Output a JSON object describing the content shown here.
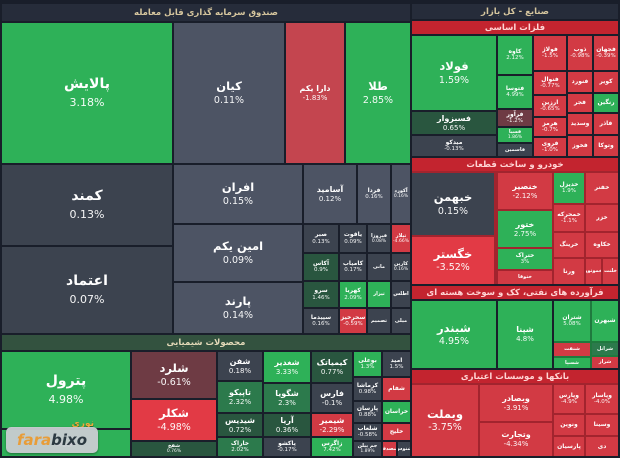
{
  "page": {
    "app": "farabixo market map",
    "left_panel_title": "صندوق سرمایه گذاری قابل معامله",
    "right_panel_title": "صنایع - کل بازار"
  },
  "watermark": {
    "brand_fara": "fara",
    "brand_bixo": "bixo",
    "overlay_label": "نوری"
  },
  "colors": {
    "background": "#191e2a",
    "header_bg": "#262c3a",
    "header_fg": "#d6c69e",
    "red_bar_bg": "#c3242f",
    "red_bar_fg": "#ffd4d4",
    "green_bar_bg": "#33523f",
    "green_bar_fg": "#e3d9b8",
    "tones": {
      "g": "#2eb158",
      "gk": "#2c7a4c",
      "gd": "#29563f",
      "gy": "#4d5464",
      "dk": "#3c434f",
      "r": "#d23a44",
      "rb": "#e23a45",
      "cr": "#c4454f",
      "mr": "#6e3b44"
    }
  },
  "chart_data": {
    "type": "heatmap",
    "subtype": "stock-market-treemap",
    "value_unit": "percent change",
    "sections": [
      {
        "id": "etf-funds",
        "label": "صندوق سرمایه گذاری قابل معامله",
        "bar": [
          2,
          4,
          408,
          17
        ],
        "bar_style": "header",
        "tiles": [
          [
            "پالایش",
            "3.18%",
            "g",
            2,
            23,
            170,
            140
          ],
          [
            "کیان",
            "0.11%",
            "gy",
            174,
            23,
            110,
            140
          ],
          [
            "دارا یکم",
            "-1.83%",
            "cr",
            286,
            23,
            58,
            140
          ],
          [
            "طلا",
            "2.85%",
            "g",
            346,
            23,
            64,
            140
          ],
          [
            "کمند",
            "0.13%",
            "dk",
            2,
            165,
            170,
            80
          ],
          [
            "اعتماد",
            "0.07%",
            "dk",
            2,
            247,
            170,
            86
          ],
          [
            "افران",
            "0.15%",
            "gy",
            174,
            165,
            128,
            58
          ],
          [
            "آسامید",
            "0.12%",
            "gy",
            304,
            165,
            52,
            58
          ],
          [
            "فردا",
            "0.16%",
            "gy",
            358,
            165,
            32,
            58
          ],
          [
            "آکورد",
            "0.16%",
            "gy",
            392,
            165,
            18,
            58
          ],
          [
            "امین یکم",
            "0.09%",
            "gy",
            174,
            225,
            128,
            56
          ],
          [
            "پارند",
            "0.14%",
            "gy",
            174,
            283,
            128,
            50
          ],
          [
            "صبر",
            "0.13%",
            "dk",
            304,
            225,
            34,
            27
          ],
          [
            "یاقوت",
            "0.09%",
            "dk",
            340,
            225,
            26,
            27
          ],
          [
            "فیروزا",
            "0.08%",
            "dk",
            368,
            225,
            22,
            27
          ],
          [
            "تیلار",
            "-4.66%",
            "r",
            392,
            225,
            18,
            27
          ],
          [
            "آکاس",
            "0.9%",
            "gd",
            304,
            254,
            34,
            26
          ],
          [
            "کامیاب",
            "0.17%",
            "dk",
            340,
            254,
            26,
            26
          ],
          [
            "مانی",
            "",
            "dk",
            368,
            254,
            22,
            26
          ],
          [
            "کارین",
            "0.16%",
            "dk",
            392,
            254,
            18,
            26
          ],
          [
            "سرو",
            "1.46%",
            "gd",
            304,
            282,
            34,
            25
          ],
          [
            "کهربا",
            "2.09%",
            "g",
            340,
            282,
            26,
            25
          ],
          [
            "تیزار",
            "",
            "g",
            368,
            282,
            22,
            25
          ],
          [
            "اطلس",
            "",
            "dk",
            392,
            282,
            18,
            25
          ],
          [
            "سپیدما",
            "0.16%",
            "dk",
            304,
            309,
            34,
            24
          ],
          [
            "سحرخیز",
            "-0.59%",
            "r",
            340,
            309,
            26,
            24
          ],
          [
            "تصمیم",
            "",
            "dk",
            368,
            309,
            22,
            24
          ],
          [
            "میلی",
            "",
            "dk",
            392,
            309,
            18,
            24
          ]
        ]
      },
      {
        "id": "chemicals",
        "label": "محصولات شیمیایی",
        "bar": [
          2,
          335,
          408,
          15
        ],
        "bar_style": "green",
        "tiles": [
          [
            "پترول",
            "4.98%",
            "g",
            2,
            352,
            128,
            76
          ],
          [
            "نوری",
            "",
            "g",
            2,
            430,
            128,
            26
          ],
          [
            "شلرد",
            "-0.61%",
            "mr",
            132,
            352,
            84,
            46
          ],
          [
            "شکلر",
            "-4.98%",
            "rb",
            132,
            400,
            84,
            40
          ],
          [
            "شفخ",
            "0.76%",
            "gd",
            132,
            442,
            84,
            14
          ],
          [
            "شفن",
            "0.18%",
            "dk",
            218,
            352,
            44,
            28
          ],
          [
            "تاپیکو",
            "2.32%",
            "gk",
            218,
            382,
            44,
            30
          ],
          [
            "شیدیس",
            "0.72%",
            "gd",
            218,
            414,
            44,
            22
          ],
          [
            "خاراک",
            "2.02%",
            "gk",
            218,
            438,
            44,
            18
          ],
          [
            "شغدیر",
            "3.33%",
            "g",
            264,
            352,
            46,
            30
          ],
          [
            "شگویا",
            "2.3%",
            "gk",
            264,
            384,
            46,
            28
          ],
          [
            "آریا",
            "0.36%",
            "gd",
            264,
            414,
            46,
            22
          ],
          [
            "پاکشو",
            "-0.17%",
            "dk",
            264,
            438,
            46,
            18
          ],
          [
            "کیمیاتک",
            "0.77%",
            "gd",
            312,
            352,
            40,
            30
          ],
          [
            "فارس",
            "-0.1%",
            "dk",
            312,
            384,
            40,
            28
          ],
          [
            "شیمیر",
            "-2.29%",
            "r",
            312,
            414,
            40,
            22
          ],
          [
            "زاگرس",
            "7.42%",
            "g",
            312,
            438,
            40,
            18
          ],
          [
            "بوعلی",
            "1.3%",
            "g",
            354,
            352,
            27,
            24
          ],
          [
            "امید",
            "1.5%",
            "dk",
            383,
            352,
            27,
            24
          ],
          [
            "کرماشا",
            "0.98%",
            "dk",
            354,
            378,
            27,
            22
          ],
          [
            "شفام",
            "",
            "r",
            383,
            378,
            27,
            22
          ],
          [
            "پارسان",
            "0.88%",
            "dk",
            354,
            402,
            27,
            20
          ],
          [
            "خراسان",
            "",
            "g",
            383,
            402,
            27,
            20
          ],
          [
            "شلعاب",
            "-0.58%",
            "dk",
            354,
            424,
            27,
            16
          ],
          [
            "خلیج",
            "",
            "r",
            383,
            424,
            27,
            16
          ],
          [
            "جم پیلن",
            "1.89%",
            "dk",
            354,
            442,
            27,
            14
          ],
          [
            "شصدف",
            "",
            "r",
            383,
            442,
            13,
            14
          ],
          [
            "شنوس",
            "",
            "dk",
            398,
            442,
            12,
            14
          ]
        ]
      },
      {
        "id": "industries-header",
        "label": "صنایع - کل بازار",
        "bar": [
          412,
          4,
          206,
          15
        ],
        "bar_style": "header",
        "tiles": []
      },
      {
        "id": "basic-metals",
        "label": "فلزات اساسی",
        "bar": [
          412,
          21,
          206,
          13
        ],
        "bar_style": "red",
        "tiles": [
          [
            "فولاد",
            "1.59%",
            "g",
            412,
            36,
            84,
            74
          ],
          [
            "فسبزوار",
            "0.65%",
            "gd",
            412,
            112,
            84,
            22
          ],
          [
            "میدکو",
            "-0.13%",
            "dk",
            412,
            136,
            84,
            20
          ],
          [
            "کاوه",
            "2.12%",
            "g",
            498,
            36,
            34,
            38
          ],
          [
            "فتوسا",
            "4.99%",
            "g",
            498,
            76,
            34,
            32
          ],
          [
            "فرآور",
            "-1.2%",
            "mr",
            498,
            110,
            34,
            16
          ],
          [
            "فسپا",
            "1.86%",
            "g",
            498,
            128,
            34,
            14
          ],
          [
            "فاسمین",
            "",
            "dk",
            498,
            144,
            34,
            12
          ],
          [
            "فولاژ",
            "-1.5%",
            "r",
            534,
            36,
            32,
            34
          ],
          [
            "ذوب",
            "-0.98%",
            "r",
            568,
            36,
            24,
            34
          ],
          [
            "فجهان",
            "-0.39%",
            "r",
            594,
            36,
            24,
            34
          ],
          [
            "فنوال",
            "-0.77%",
            "r",
            534,
            72,
            32,
            22
          ],
          [
            "ارزین",
            "-0.65%",
            "r",
            534,
            96,
            32,
            20
          ],
          [
            "هرمز",
            "-0.7%",
            "r",
            534,
            118,
            32,
            18
          ],
          [
            "فروی",
            "-1.0%",
            "r",
            534,
            138,
            32,
            18
          ],
          [
            "فنورد",
            "",
            "r",
            568,
            72,
            24,
            20
          ],
          [
            "کویر",
            "",
            "r",
            594,
            72,
            24,
            20
          ],
          [
            "فجر",
            "",
            "r",
            568,
            94,
            24,
            18
          ],
          [
            "رنگین",
            "",
            "g",
            594,
            94,
            24,
            18
          ],
          [
            "وسدید",
            "",
            "r",
            568,
            114,
            24,
            20
          ],
          [
            "فاذر",
            "",
            "r",
            594,
            114,
            24,
            20
          ],
          [
            "فخوز",
            "",
            "r",
            568,
            136,
            24,
            20
          ],
          [
            "وتوکا",
            "",
            "r",
            594,
            136,
            24,
            20
          ]
        ]
      },
      {
        "id": "auto-parts",
        "label": "خودرو و ساخت قطعات",
        "bar": [
          412,
          158,
          206,
          13
        ],
        "bar_style": "red",
        "fills": [
          [
            412,
            171,
            206,
            113,
            "#a2242e"
          ]
        ],
        "tiles": [
          [
            "خبهمن",
            "0.15%",
            "dk",
            412,
            173,
            82,
            62
          ],
          [
            "خگستر",
            "-3.52%",
            "rb",
            412,
            237,
            82,
            47
          ],
          [
            "خنصیر",
            "-2.12%",
            "r",
            498,
            173,
            54,
            36
          ],
          [
            "ختور",
            "2.75%",
            "g",
            498,
            211,
            54,
            36
          ],
          [
            "ختراک",
            "3%",
            "g",
            498,
            249,
            54,
            20
          ],
          [
            "ختوقا",
            "-4.99%",
            "r",
            498,
            271,
            54,
            13
          ],
          [
            "خدیزل",
            "1.9%",
            "g",
            554,
            173,
            30,
            30
          ],
          [
            "خفنر",
            "",
            "r",
            586,
            173,
            32,
            30
          ],
          [
            "خمحرکه",
            "-1.1%",
            "r",
            554,
            205,
            30,
            26
          ],
          [
            "خزر",
            "",
            "r",
            586,
            205,
            32,
            26
          ],
          [
            "خرینگ",
            "",
            "r",
            554,
            233,
            30,
            24
          ],
          [
            "خکاوه",
            "",
            "r",
            586,
            233,
            32,
            24
          ],
          [
            "ورنا",
            "",
            "r",
            554,
            259,
            30,
            25
          ],
          [
            "خموتور",
            "",
            "r",
            586,
            259,
            15,
            25
          ],
          [
            "خلنت",
            "",
            "r",
            603,
            259,
            15,
            25
          ]
        ]
      },
      {
        "id": "oil-products",
        "label": "فرآورده های نفتی، کک و سوخت هسته ای",
        "bar": [
          412,
          286,
          206,
          13
        ],
        "bar_style": "red",
        "fills": [
          [
            554,
            301,
            64,
            67,
            "#1f7a3e"
          ]
        ],
        "tiles": [
          [
            "شبندر",
            "4.95%",
            "g",
            412,
            301,
            84,
            67
          ],
          [
            "شپنا",
            "4.8%",
            "g",
            498,
            301,
            54,
            67
          ],
          [
            "شتران",
            "5.08%",
            "g",
            554,
            301,
            36,
            40
          ],
          [
            "شبهرن",
            "",
            "g",
            592,
            301,
            26,
            40
          ],
          [
            "شنفت",
            "",
            "r",
            554,
            343,
            36,
            13
          ],
          [
            "شسپا",
            "",
            "g",
            554,
            358,
            36,
            10
          ],
          [
            "شرانل",
            "",
            "gk",
            592,
            343,
            26,
            12
          ],
          [
            "شراز",
            "",
            "r",
            592,
            357,
            26,
            11
          ]
        ]
      },
      {
        "id": "banks",
        "label": "بانکها و موسسات اعتباری",
        "bar": [
          412,
          370,
          206,
          13
        ],
        "bar_style": "red",
        "fills": [
          [
            412,
            383,
            206,
            73,
            "#a2242e"
          ]
        ],
        "tiles": [
          [
            "وبملت",
            "-3.75%",
            "r",
            412,
            385,
            66,
            71
          ],
          [
            "وبصادر",
            "-3.91%",
            "r",
            480,
            385,
            72,
            36
          ],
          [
            "وتجارت",
            "-4.34%",
            "r",
            480,
            423,
            72,
            33
          ],
          [
            "وپارس",
            "-4.9%",
            "r",
            554,
            385,
            30,
            28
          ],
          [
            "وپاسار",
            "-4.0%",
            "r",
            586,
            385,
            32,
            28
          ],
          [
            "ونوین",
            "",
            "r",
            554,
            415,
            30,
            20
          ],
          [
            "وسینا",
            "",
            "r",
            586,
            415,
            32,
            20
          ],
          [
            "پارسیان",
            "",
            "r",
            554,
            437,
            30,
            19
          ],
          [
            "دی",
            "",
            "r",
            586,
            437,
            32,
            19
          ]
        ]
      }
    ]
  }
}
